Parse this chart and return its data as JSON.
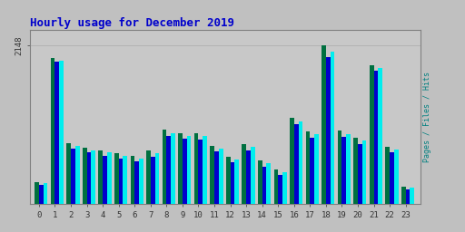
{
  "title": "Hourly usage for December 2019",
  "hours": [
    0,
    1,
    2,
    3,
    4,
    5,
    6,
    7,
    8,
    9,
    10,
    11,
    12,
    13,
    14,
    15,
    16,
    17,
    18,
    19,
    20,
    21,
    22,
    23
  ],
  "pages": [
    300,
    1970,
    820,
    760,
    730,
    690,
    650,
    720,
    1010,
    960,
    960,
    790,
    640,
    810,
    590,
    470,
    1170,
    980,
    2148,
    990,
    900,
    1880,
    780,
    240
  ],
  "files": [
    280,
    1940,
    790,
    730,
    695,
    655,
    615,
    685,
    960,
    920,
    920,
    755,
    605,
    775,
    555,
    435,
    1120,
    940,
    2060,
    950,
    860,
    1840,
    740,
    220
  ],
  "hits": [
    255,
    1920,
    755,
    700,
    655,
    620,
    575,
    640,
    920,
    880,
    875,
    715,
    565,
    730,
    510,
    390,
    1075,
    895,
    1990,
    905,
    815,
    1800,
    700,
    195
  ],
  "ymax": 2350,
  "ytick_val": 2148,
  "bar_width": 0.27,
  "color_pages": "#007040",
  "color_files": "#00EEEE",
  "color_hits": "#0000CC",
  "bg_color": "#C0C0C0",
  "plot_bg": "#C8C8C8",
  "title_color": "#0000CC",
  "grid_color": "#AAAAAA",
  "ylabel": "Pages / Files / Hits",
  "ylabel_color": "#008080"
}
